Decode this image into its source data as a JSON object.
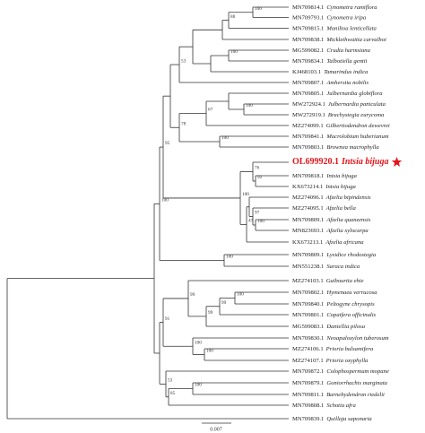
{
  "tree": {
    "taxa": [
      {
        "accession": "MN709814.1",
        "species": "Cynometra ramiflora"
      },
      {
        "accession": "MN709793.1",
        "species": "Cynometra iripa"
      },
      {
        "accession": "MN709815.1",
        "species": "Maniltoa lenticellata"
      },
      {
        "accession": "MN709838.1",
        "species": "Micklethwaitia carvalhoi"
      },
      {
        "accession": "MG599082.1",
        "species": "Crudia harmsiana"
      },
      {
        "accession": "MN709834.1",
        "species": "Talbotiella gentii"
      },
      {
        "accession": "KJ468103.1",
        "species": "Tamarindus indica"
      },
      {
        "accession": "MN709807.1",
        "species": "Amherstia nobilis"
      },
      {
        "accession": "MN709805.1",
        "species": "Julbernardia globiflora"
      },
      {
        "accession": "MW272924.1",
        "species": "Julbernardia paniculata"
      },
      {
        "accession": "MW272919.1",
        "species": "Brachystegia eurycoma"
      },
      {
        "accession": "MZ274099.1",
        "species": "Gilbertiodendron dewevrei"
      },
      {
        "accession": "MN709841.1",
        "species": "Macrolobium huberianum"
      },
      {
        "accession": "MN709803.1",
        "species": "Brownea macrophylla"
      },
      {
        "accession": "OL699920.1",
        "species": "Intsia bijuga",
        "color": "#e3161b"
      },
      {
        "accession": "MN709818.1",
        "species": "Intsia bijuga"
      },
      {
        "accession": "KX673214.1",
        "species": "Intsia bijuga"
      },
      {
        "accession": "MZ274096.1",
        "species": "Afzelia bipindensis"
      },
      {
        "accession": "MZ274095.1",
        "species": "Afzelia bella"
      },
      {
        "accession": "MN709809.1",
        "species": "Afzelia quanzensis"
      },
      {
        "accession": "MN823693.1",
        "species": "Afzelia xylocarpa"
      },
      {
        "accession": "KX673213.1",
        "species": "Afzelia africana"
      },
      {
        "accession": "MN709809.1",
        "species": "Lysidice rhodostegia"
      },
      {
        "accession": "MN551238.1",
        "species": "Saraca indica"
      },
      {
        "accession": "MZ274103.1",
        "species": "Guibourtia ehie"
      },
      {
        "accession": "MN709802.1",
        "species": "Hymenaea verrucosa"
      },
      {
        "accession": "MN709840.1",
        "species": "Peltogyne chrysopis"
      },
      {
        "accession": "MN709801.1",
        "species": "Copaifera officinalis"
      },
      {
        "accession": "MG599083.1",
        "species": "Daniellia pilosa"
      },
      {
        "accession": "MN709830.1",
        "species": "Neoapaloxylon tuberosum"
      },
      {
        "accession": "MZ274106.1",
        "species": "Prioria balsamifera"
      },
      {
        "accession": "MZ274107.1",
        "species": "Prioria oxyphylla"
      },
      {
        "accession": "MN709872.1",
        "species": "Colophospermum mopane"
      },
      {
        "accession": "MN709879.1",
        "species": "Goniorrhachis marginata"
      },
      {
        "accession": "MN709811.1",
        "species": "Barnebydendron riedelii"
      },
      {
        "accession": "MN709808.1",
        "species": "Schotia afra"
      },
      {
        "accession": "MN709839.1",
        "species": "Quillaja saponaria"
      }
    ],
    "supports": [
      100,
      88,
      100,
      53,
      67,
      100,
      100,
      78,
      95,
      100,
      76,
      92,
      47,
      97,
      100,
      100,
      99,
      100,
      99,
      99,
      100,
      100,
      91,
      53,
      85,
      100,
      100
    ],
    "scale_label": "0.007"
  }
}
